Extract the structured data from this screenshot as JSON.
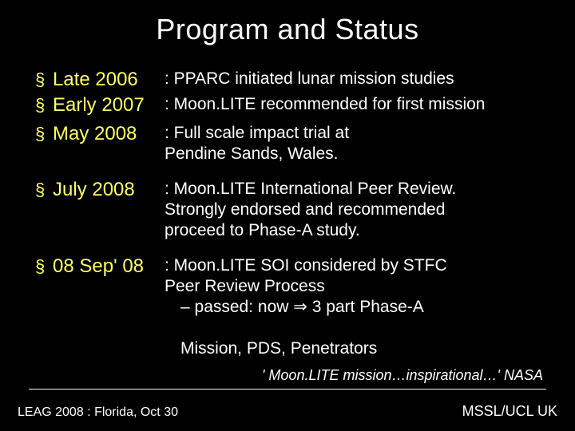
{
  "title": "Program and Status",
  "items": [
    {
      "label": "Late 2006",
      "desc": ": PPARC initiated lunar mission studies",
      "gap": "none"
    },
    {
      "label": "Early 2007",
      "desc": ": Moon.LITE recommended for first mission",
      "gap": "sm"
    },
    {
      "label": "May 2008",
      "desc": ": Full scale impact trial at\nPendine Sands, Wales.",
      "gap": "lg"
    },
    {
      "label": "July 2008",
      "desc": ": Moon.LITE International Peer Review.\nStrongly endorsed and recommended\nproceed to Phase-A study.",
      "gap": "lg"
    },
    {
      "label": "08 Sep' 08",
      "desc": ": Moon.LITE SOI considered by STFC\nPeer Review Process\n– passed: now ⇒ 3 part Phase-A\nMission, PDS, Penetrators",
      "gap": "none",
      "subindent_from": 2
    }
  ],
  "quote": "' Moon.LITE mission…inspirational…' NASA",
  "footer_left": "LEAG 2008 :  Florida, Oct 30",
  "footer_right": "MSSL/UCL UK",
  "colors": {
    "background": "#000000",
    "accent": "#ffff66",
    "text": "#ffffff"
  },
  "bullet_glyph": "§"
}
